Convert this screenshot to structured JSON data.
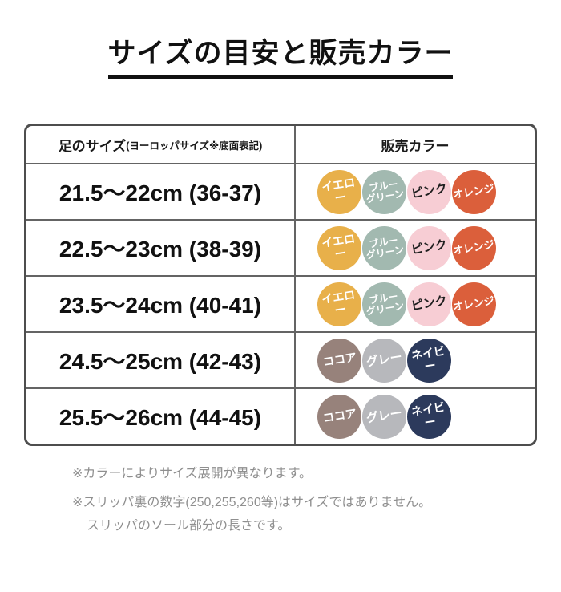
{
  "title": "サイズの目安と販売カラー",
  "table": {
    "header": {
      "size_label": "足のサイズ",
      "size_sublabel": "(ヨーロッパサイズ※底面表記)",
      "color_label": "販売カラー"
    },
    "rows": [
      {
        "size": "21.5〜22cm (36-37)",
        "colors": [
          "yellow",
          "bluegreen",
          "pink",
          "orange"
        ]
      },
      {
        "size": "22.5〜23cm (38-39)",
        "colors": [
          "yellow",
          "bluegreen",
          "pink",
          "orange"
        ]
      },
      {
        "size": "23.5〜24cm (40-41)",
        "colors": [
          "yellow",
          "bluegreen",
          "pink",
          "orange"
        ]
      },
      {
        "size": "24.5〜25cm (42-43)",
        "colors": [
          "cocoa",
          "gray",
          "navy"
        ]
      },
      {
        "size": "25.5〜26cm (44-45)",
        "colors": [
          "cocoa",
          "gray",
          "navy"
        ]
      }
    ]
  },
  "swatches": {
    "yellow": {
      "label": "イエロー",
      "bg": "#E8B04A",
      "fg": "#FFFFFF",
      "fs": 14
    },
    "bluegreen": {
      "label": "ブルー\nグリーン",
      "bg": "#A2B9B0",
      "fg": "#FFFFFF",
      "fs": 12
    },
    "pink": {
      "label": "ピンク",
      "bg": "#F7CDD4",
      "fg": "#1E1E1E",
      "fs": 15
    },
    "orange": {
      "label": "オレンジ",
      "bg": "#DB5F3B",
      "fg": "#FFFFFF",
      "fs": 13
    },
    "cocoa": {
      "label": "ココア",
      "bg": "#97827B",
      "fg": "#FFFFFF",
      "fs": 14
    },
    "gray": {
      "label": "グレー",
      "bg": "#B7B8BC",
      "fg": "#FFFFFF",
      "fs": 15
    },
    "navy": {
      "label": "ネイビー",
      "bg": "#2C3A5C",
      "fg": "#FFFFFF",
      "fs": 14
    }
  },
  "notes": [
    "※カラーによりサイズ展開が異なります。",
    "※スリッパ裏の数字(250,255,260等)はサイズではありません。",
    "スリッパのソール部分の長さです。"
  ]
}
